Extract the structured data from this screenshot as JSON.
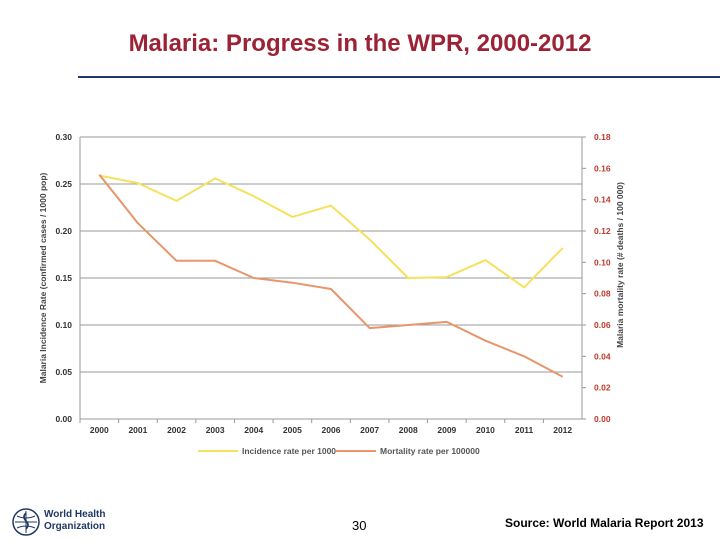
{
  "slide": {
    "title": "Malaria: Progress in the WPR, 2000-2012",
    "page_number": "30",
    "source": "Source: World Malaria Report 2013",
    "logo_text": [
      "World Health",
      "Organization"
    ]
  },
  "colors": {
    "title": "#9b2335",
    "rule": "#1f3864",
    "incidence": "#f5e15b",
    "mortality": "#e8956b",
    "right_axis": "#c0392b"
  },
  "chart_data": {
    "type": "line",
    "title": "",
    "x": [
      "2000",
      "2001",
      "2002",
      "2003",
      "2004",
      "2005",
      "2006",
      "2007",
      "2008",
      "2009",
      "2010",
      "2011",
      "2012"
    ],
    "left_axis": {
      "label": "Malaria Incidence Rate (confirmed cases / 1000 pop)",
      "ylim": [
        0,
        0.3
      ],
      "ticks": [
        "0.00",
        "0.05",
        "0.10",
        "0.15",
        "0.20",
        "0.25",
        "0.30"
      ]
    },
    "right_axis": {
      "label": "Malaria mortality rate (# deaths / 100 000)",
      "ylim": [
        0,
        0.18
      ],
      "ticks": [
        "0.00",
        "0.02",
        "0.04",
        "0.06",
        "0.08",
        "0.10",
        "0.12",
        "0.14",
        "0.16",
        "0.18"
      ]
    },
    "series": [
      {
        "name": "Incidence rate per 1000",
        "axis": "left",
        "values": [
          0.259,
          0.251,
          0.232,
          0.256,
          0.237,
          0.215,
          0.227,
          0.191,
          0.15,
          0.151,
          0.169,
          0.14,
          0.182
        ]
      },
      {
        "name": "Mortality rate per 100000",
        "axis": "right",
        "values": [
          0.156,
          0.125,
          0.101,
          0.101,
          0.09,
          0.087,
          0.083,
          0.058,
          0.06,
          0.062,
          0.05,
          0.04,
          0.027
        ]
      }
    ],
    "grid": true,
    "legend": "bottom"
  }
}
